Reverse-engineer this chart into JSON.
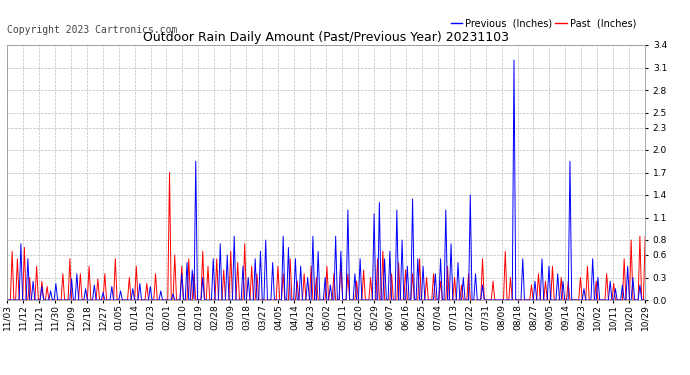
{
  "title": "Outdoor Rain Daily Amount (Past/Previous Year) 20231103",
  "copyright": "Copyright 2023 Cartronics.com",
  "legend_previous": "Previous  (Inches)",
  "legend_past": "Past  (Inches)",
  "color_previous": "#0000ff",
  "color_past": "#ff0000",
  "background_color": "#ffffff",
  "grid_color": "#bbbbbb",
  "ylim": [
    0.0,
    3.4
  ],
  "yticks": [
    0.0,
    0.3,
    0.6,
    0.8,
    1.1,
    1.4,
    1.7,
    2.0,
    2.3,
    2.5,
    2.8,
    3.1,
    3.4
  ],
  "x_labels": [
    "11/03",
    "11/12",
    "11/21",
    "11/30",
    "12/09",
    "12/18",
    "12/27",
    "01/05",
    "01/14",
    "01/23",
    "02/01",
    "02/10",
    "02/19",
    "02/28",
    "03/09",
    "03/18",
    "03/27",
    "04/05",
    "04/14",
    "04/23",
    "05/02",
    "05/11",
    "05/20",
    "05/29",
    "06/07",
    "06/16",
    "06/25",
    "07/04",
    "07/13",
    "07/22",
    "07/31",
    "08/09",
    "08/18",
    "08/27",
    "09/05",
    "09/14",
    "09/23",
    "10/02",
    "10/11",
    "10/20",
    "10/29"
  ],
  "n_points": 366,
  "title_fontsize": 9,
  "copyright_fontsize": 7,
  "legend_fontsize": 7,
  "tick_fontsize": 6.5
}
